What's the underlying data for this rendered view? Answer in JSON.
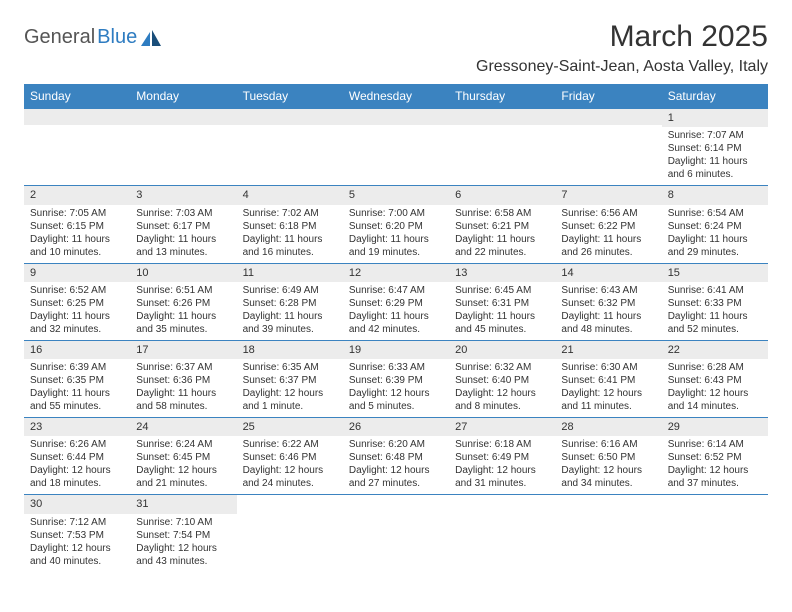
{
  "logo": {
    "text1": "General",
    "text2": "Blue"
  },
  "title": "March 2025",
  "location": "Gressoney-Saint-Jean, Aosta Valley, Italy",
  "colors": {
    "header_bg": "#3b83c0",
    "header_fg": "#ffffff",
    "daynum_bg": "#ececec",
    "border": "#3b83c0",
    "logo_blue": "#2e7cc1",
    "text": "#333333"
  },
  "dow": [
    "Sunday",
    "Monday",
    "Tuesday",
    "Wednesday",
    "Thursday",
    "Friday",
    "Saturday"
  ],
  "weeks": [
    [
      null,
      null,
      null,
      null,
      null,
      null,
      {
        "n": "1",
        "sr": "Sunrise: 7:07 AM",
        "ss": "Sunset: 6:14 PM",
        "dl1": "Daylight: 11 hours",
        "dl2": "and 6 minutes."
      }
    ],
    [
      {
        "n": "2",
        "sr": "Sunrise: 7:05 AM",
        "ss": "Sunset: 6:15 PM",
        "dl1": "Daylight: 11 hours",
        "dl2": "and 10 minutes."
      },
      {
        "n": "3",
        "sr": "Sunrise: 7:03 AM",
        "ss": "Sunset: 6:17 PM",
        "dl1": "Daylight: 11 hours",
        "dl2": "and 13 minutes."
      },
      {
        "n": "4",
        "sr": "Sunrise: 7:02 AM",
        "ss": "Sunset: 6:18 PM",
        "dl1": "Daylight: 11 hours",
        "dl2": "and 16 minutes."
      },
      {
        "n": "5",
        "sr": "Sunrise: 7:00 AM",
        "ss": "Sunset: 6:20 PM",
        "dl1": "Daylight: 11 hours",
        "dl2": "and 19 minutes."
      },
      {
        "n": "6",
        "sr": "Sunrise: 6:58 AM",
        "ss": "Sunset: 6:21 PM",
        "dl1": "Daylight: 11 hours",
        "dl2": "and 22 minutes."
      },
      {
        "n": "7",
        "sr": "Sunrise: 6:56 AM",
        "ss": "Sunset: 6:22 PM",
        "dl1": "Daylight: 11 hours",
        "dl2": "and 26 minutes."
      },
      {
        "n": "8",
        "sr": "Sunrise: 6:54 AM",
        "ss": "Sunset: 6:24 PM",
        "dl1": "Daylight: 11 hours",
        "dl2": "and 29 minutes."
      }
    ],
    [
      {
        "n": "9",
        "sr": "Sunrise: 6:52 AM",
        "ss": "Sunset: 6:25 PM",
        "dl1": "Daylight: 11 hours",
        "dl2": "and 32 minutes."
      },
      {
        "n": "10",
        "sr": "Sunrise: 6:51 AM",
        "ss": "Sunset: 6:26 PM",
        "dl1": "Daylight: 11 hours",
        "dl2": "and 35 minutes."
      },
      {
        "n": "11",
        "sr": "Sunrise: 6:49 AM",
        "ss": "Sunset: 6:28 PM",
        "dl1": "Daylight: 11 hours",
        "dl2": "and 39 minutes."
      },
      {
        "n": "12",
        "sr": "Sunrise: 6:47 AM",
        "ss": "Sunset: 6:29 PM",
        "dl1": "Daylight: 11 hours",
        "dl2": "and 42 minutes."
      },
      {
        "n": "13",
        "sr": "Sunrise: 6:45 AM",
        "ss": "Sunset: 6:31 PM",
        "dl1": "Daylight: 11 hours",
        "dl2": "and 45 minutes."
      },
      {
        "n": "14",
        "sr": "Sunrise: 6:43 AM",
        "ss": "Sunset: 6:32 PM",
        "dl1": "Daylight: 11 hours",
        "dl2": "and 48 minutes."
      },
      {
        "n": "15",
        "sr": "Sunrise: 6:41 AM",
        "ss": "Sunset: 6:33 PM",
        "dl1": "Daylight: 11 hours",
        "dl2": "and 52 minutes."
      }
    ],
    [
      {
        "n": "16",
        "sr": "Sunrise: 6:39 AM",
        "ss": "Sunset: 6:35 PM",
        "dl1": "Daylight: 11 hours",
        "dl2": "and 55 minutes."
      },
      {
        "n": "17",
        "sr": "Sunrise: 6:37 AM",
        "ss": "Sunset: 6:36 PM",
        "dl1": "Daylight: 11 hours",
        "dl2": "and 58 minutes."
      },
      {
        "n": "18",
        "sr": "Sunrise: 6:35 AM",
        "ss": "Sunset: 6:37 PM",
        "dl1": "Daylight: 12 hours",
        "dl2": "and 1 minute."
      },
      {
        "n": "19",
        "sr": "Sunrise: 6:33 AM",
        "ss": "Sunset: 6:39 PM",
        "dl1": "Daylight: 12 hours",
        "dl2": "and 5 minutes."
      },
      {
        "n": "20",
        "sr": "Sunrise: 6:32 AM",
        "ss": "Sunset: 6:40 PM",
        "dl1": "Daylight: 12 hours",
        "dl2": "and 8 minutes."
      },
      {
        "n": "21",
        "sr": "Sunrise: 6:30 AM",
        "ss": "Sunset: 6:41 PM",
        "dl1": "Daylight: 12 hours",
        "dl2": "and 11 minutes."
      },
      {
        "n": "22",
        "sr": "Sunrise: 6:28 AM",
        "ss": "Sunset: 6:43 PM",
        "dl1": "Daylight: 12 hours",
        "dl2": "and 14 minutes."
      }
    ],
    [
      {
        "n": "23",
        "sr": "Sunrise: 6:26 AM",
        "ss": "Sunset: 6:44 PM",
        "dl1": "Daylight: 12 hours",
        "dl2": "and 18 minutes."
      },
      {
        "n": "24",
        "sr": "Sunrise: 6:24 AM",
        "ss": "Sunset: 6:45 PM",
        "dl1": "Daylight: 12 hours",
        "dl2": "and 21 minutes."
      },
      {
        "n": "25",
        "sr": "Sunrise: 6:22 AM",
        "ss": "Sunset: 6:46 PM",
        "dl1": "Daylight: 12 hours",
        "dl2": "and 24 minutes."
      },
      {
        "n": "26",
        "sr": "Sunrise: 6:20 AM",
        "ss": "Sunset: 6:48 PM",
        "dl1": "Daylight: 12 hours",
        "dl2": "and 27 minutes."
      },
      {
        "n": "27",
        "sr": "Sunrise: 6:18 AM",
        "ss": "Sunset: 6:49 PM",
        "dl1": "Daylight: 12 hours",
        "dl2": "and 31 minutes."
      },
      {
        "n": "28",
        "sr": "Sunrise: 6:16 AM",
        "ss": "Sunset: 6:50 PM",
        "dl1": "Daylight: 12 hours",
        "dl2": "and 34 minutes."
      },
      {
        "n": "29",
        "sr": "Sunrise: 6:14 AM",
        "ss": "Sunset: 6:52 PM",
        "dl1": "Daylight: 12 hours",
        "dl2": "and 37 minutes."
      }
    ],
    [
      {
        "n": "30",
        "sr": "Sunrise: 7:12 AM",
        "ss": "Sunset: 7:53 PM",
        "dl1": "Daylight: 12 hours",
        "dl2": "and 40 minutes."
      },
      {
        "n": "31",
        "sr": "Sunrise: 7:10 AM",
        "ss": "Sunset: 7:54 PM",
        "dl1": "Daylight: 12 hours",
        "dl2": "and 43 minutes."
      },
      null,
      null,
      null,
      null,
      null
    ]
  ]
}
